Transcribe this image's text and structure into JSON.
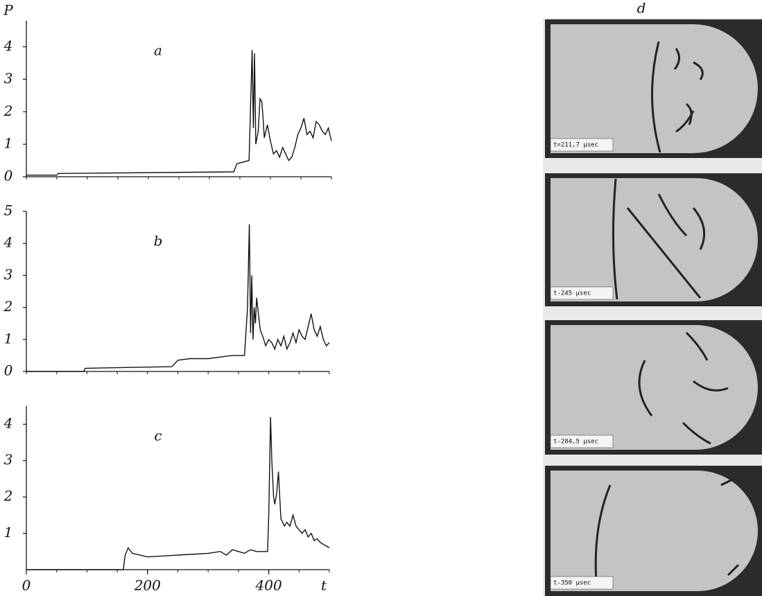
{
  "chart_data": [
    {
      "type": "line",
      "title": "a",
      "y_label": "P",
      "color": "#111111",
      "x": [
        0,
        50,
        52,
        340,
        345,
        365,
        368,
        370,
        372,
        374,
        376,
        380,
        383,
        386,
        388,
        390,
        395,
        400,
        405,
        410,
        415,
        420,
        425,
        430,
        435,
        440,
        445,
        450,
        455,
        460,
        465,
        470,
        475,
        480,
        485,
        490,
        495,
        500
      ],
      "values": [
        0.05,
        0.05,
        0.1,
        0.15,
        0.4,
        0.5,
        2.5,
        3.9,
        1.5,
        3.8,
        1.0,
        1.4,
        2.4,
        2.3,
        1.8,
        1.2,
        1.6,
        1.1,
        0.7,
        0.8,
        0.6,
        0.9,
        0.7,
        0.5,
        0.6,
        0.9,
        1.3,
        1.5,
        1.8,
        1.3,
        1.4,
        1.2,
        1.7,
        1.6,
        1.4,
        1.3,
        1.5,
        1.1
      ],
      "xlim": [
        0,
        500
      ],
      "ylim": [
        0,
        4.8
      ],
      "yticks": [
        0,
        1,
        2,
        3,
        4
      ],
      "xminor": [
        0,
        50,
        100,
        150,
        200,
        250,
        300,
        350,
        400,
        450,
        500
      ]
    },
    {
      "type": "line",
      "title": "b",
      "color": "#111111",
      "x": [
        0,
        95,
        97,
        240,
        250,
        270,
        300,
        320,
        340,
        360,
        365,
        368,
        370,
        372,
        374,
        376,
        378,
        380,
        383,
        386,
        390,
        395,
        400,
        405,
        410,
        415,
        420,
        425,
        430,
        435,
        440,
        445,
        450,
        455,
        460,
        465,
        470,
        475,
        480,
        485,
        490,
        495,
        500
      ],
      "values": [
        0,
        0,
        0.1,
        0.15,
        0.35,
        0.4,
        0.4,
        0.45,
        0.5,
        0.5,
        2.0,
        4.6,
        1.2,
        3.0,
        1.0,
        2.0,
        1.5,
        2.3,
        1.8,
        1.3,
        1.1,
        0.8,
        1.0,
        0.9,
        0.7,
        1.0,
        0.8,
        1.1,
        0.7,
        0.9,
        1.2,
        0.9,
        1.3,
        1.1,
        1.0,
        1.4,
        1.8,
        1.3,
        1.1,
        1.4,
        1.0,
        0.8,
        0.9
      ],
      "xlim": [
        0,
        500
      ],
      "ylim": [
        0,
        5
      ],
      "yticks": [
        0,
        1,
        2,
        3,
        4,
        5
      ],
      "xminor": [
        0,
        50,
        100,
        150,
        200,
        250,
        300,
        350,
        400,
        450,
        500
      ]
    },
    {
      "type": "line",
      "title": "c",
      "x_label": "t",
      "color": "#111111",
      "x": [
        0,
        160,
        163,
        168,
        175,
        200,
        250,
        300,
        320,
        330,
        340,
        350,
        360,
        370,
        380,
        390,
        398,
        400,
        403,
        405,
        408,
        410,
        413,
        416,
        420,
        423,
        426,
        430,
        435,
        440,
        445,
        450,
        455,
        460,
        465,
        470,
        475,
        480,
        485,
        490,
        495,
        500
      ],
      "values": [
        0,
        0,
        0.4,
        0.6,
        0.45,
        0.35,
        0.4,
        0.45,
        0.5,
        0.4,
        0.55,
        0.5,
        0.45,
        0.55,
        0.5,
        0.5,
        0.5,
        1.5,
        4.2,
        3.0,
        2.0,
        1.8,
        2.1,
        2.7,
        1.4,
        1.3,
        1.2,
        1.3,
        1.2,
        1.5,
        1.2,
        1.1,
        1.0,
        1.1,
        0.9,
        1.0,
        0.8,
        0.85,
        0.75,
        0.7,
        0.65,
        0.6
      ],
      "xlim": [
        0,
        500
      ],
      "ylim": [
        0,
        4.5
      ],
      "yticks": [
        1,
        2,
        3,
        4
      ],
      "xticks": [
        0,
        200,
        400
      ],
      "xminor": [
        0,
        50,
        100,
        150,
        200,
        250,
        300,
        350,
        400,
        450,
        500
      ]
    }
  ],
  "photos": {
    "label": "d",
    "frames": [
      {
        "label": "t=211,7 μsec"
      },
      {
        "label": "t-245 μsec"
      },
      {
        "label": "t-284,5 μsec"
      },
      {
        "label": "t-350 μsec"
      }
    ]
  }
}
